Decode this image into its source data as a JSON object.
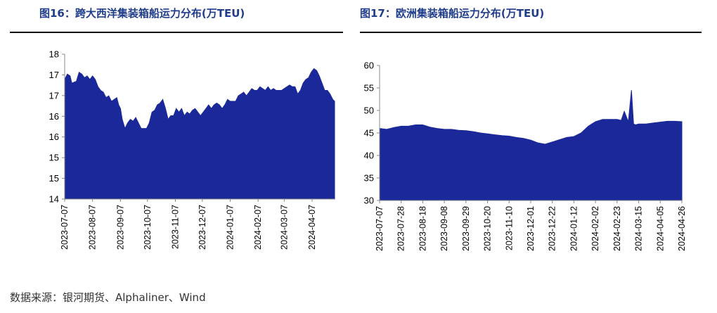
{
  "titles": {
    "left": "图16：跨大西洋集装箱船运力分布(万TEU)",
    "right": "图17：欧洲集装箱船运力分布(万TEU)"
  },
  "source": "数据来源：银河期货、Alphaliner、Wind",
  "colors": {
    "fill": "#1a2899",
    "title": "#1f3d8a",
    "axis": "#888888"
  },
  "chart_data": [
    {
      "type": "area",
      "title": "图16：跨大西洋集装箱船运力分布(万TEU)",
      "ylim": [
        14,
        18
      ],
      "y_tick_labels": [
        "14",
        "15",
        "15",
        "16",
        "16",
        "17",
        "17",
        "18"
      ],
      "x_tick_labels": [
        "2023-07-07",
        "2023-08-07",
        "2023-09-07",
        "2023-10-07",
        "2023-11-07",
        "2023-12-07",
        "2024-01-07",
        "2024-02-07",
        "2024-03-07",
        "2024-04-07"
      ],
      "grid": false,
      "series": [
        {
          "x": [
            "2023-07-07",
            "2023-07-10",
            "2023-07-13",
            "2023-07-15",
            "2023-07-20",
            "2023-07-23",
            "2023-07-26",
            "2023-07-29",
            "2023-08-01",
            "2023-08-04",
            "2023-08-07",
            "2023-08-10",
            "2023-08-13",
            "2023-08-16",
            "2023-08-19",
            "2023-08-22",
            "2023-08-25",
            "2023-08-28",
            "2023-08-31",
            "2023-09-03",
            "2023-09-05",
            "2023-09-07",
            "2023-09-09",
            "2023-09-12",
            "2023-09-15",
            "2023-09-18",
            "2023-09-21",
            "2023-09-24",
            "2023-09-27",
            "2023-09-30",
            "2023-10-03",
            "2023-10-06",
            "2023-10-09",
            "2023-10-12",
            "2023-10-15",
            "2023-10-18",
            "2023-10-21",
            "2023-10-24",
            "2023-10-27",
            "2023-10-30",
            "2023-11-02",
            "2023-11-05",
            "2023-11-08",
            "2023-11-11",
            "2023-11-14",
            "2023-11-17",
            "2023-11-20",
            "2023-11-23",
            "2023-11-26",
            "2023-11-29",
            "2023-12-02",
            "2023-12-05",
            "2023-12-08",
            "2023-12-11",
            "2023-12-14",
            "2023-12-17",
            "2023-12-20",
            "2023-12-23",
            "2023-12-26",
            "2023-12-29",
            "2024-01-01",
            "2024-01-04",
            "2024-01-07",
            "2024-01-10",
            "2024-01-13",
            "2024-01-16",
            "2024-01-19",
            "2024-01-22",
            "2024-01-25",
            "2024-01-28",
            "2024-01-31",
            "2024-02-03",
            "2024-02-06",
            "2024-02-09",
            "2024-02-12",
            "2024-02-15",
            "2024-02-18",
            "2024-02-21",
            "2024-02-24",
            "2024-02-27",
            "2024-03-01",
            "2024-03-04",
            "2024-03-07",
            "2024-03-10",
            "2024-03-13",
            "2024-03-16",
            "2024-03-19",
            "2024-03-22",
            "2024-03-25",
            "2024-03-28",
            "2024-03-31",
            "2024-04-03",
            "2024-04-06",
            "2024-04-09",
            "2024-04-12",
            "2024-04-15",
            "2024-04-18",
            "2024-04-21",
            "2024-04-24",
            "2024-04-27",
            "2024-04-30",
            "2024-05-02"
          ],
          "values": [
            17.3,
            17.45,
            17.4,
            17.2,
            17.25,
            17.5,
            17.45,
            17.35,
            17.4,
            17.3,
            17.4,
            17.3,
            17.1,
            17.0,
            16.95,
            16.8,
            16.85,
            16.7,
            16.75,
            16.8,
            16.6,
            16.5,
            16.2,
            15.95,
            16.1,
            16.2,
            16.15,
            16.25,
            16.1,
            15.95,
            15.95,
            15.95,
            16.1,
            16.4,
            16.45,
            16.6,
            16.65,
            16.75,
            16.5,
            16.2,
            16.3,
            16.3,
            16.5,
            16.4,
            16.5,
            16.3,
            16.4,
            16.35,
            16.45,
            16.5,
            16.4,
            16.3,
            16.4,
            16.5,
            16.6,
            16.5,
            16.6,
            16.65,
            16.6,
            16.5,
            16.6,
            16.75,
            16.7,
            16.7,
            16.7,
            16.85,
            16.9,
            16.95,
            16.85,
            16.95,
            17.05,
            17.0,
            17.0,
            17.1,
            17.05,
            17.0,
            17.1,
            17.0,
            17.05,
            17.0,
            17.0,
            17.0,
            17.05,
            17.1,
            17.15,
            17.1,
            17.1,
            16.9,
            17.0,
            17.2,
            17.3,
            17.35,
            17.5,
            17.6,
            17.55,
            17.4,
            17.2,
            17.0,
            17.0,
            16.9,
            16.75,
            16.7
          ]
        }
      ]
    },
    {
      "type": "area",
      "title": "图17：欧洲集装箱船运力分布(万TEU)",
      "ylim": [
        30,
        60
      ],
      "y_ticks": [
        30,
        35,
        40,
        45,
        50,
        55,
        60
      ],
      "x_tick_labels": [
        "2023-07-07",
        "2023-07-28",
        "2023-08-18",
        "2023-09-08",
        "2023-09-29",
        "2023-10-20",
        "2023-11-10",
        "2023-12-01",
        "2023-12-22",
        "2024-01-12",
        "2024-02-02",
        "2024-02-23",
        "2024-03-15",
        "2024-04-05",
        "2024-04-26"
      ],
      "grid": false,
      "series": [
        {
          "x": [
            "2023-07-07",
            "2023-07-14",
            "2023-07-21",
            "2023-07-28",
            "2023-08-04",
            "2023-08-11",
            "2023-08-18",
            "2023-08-25",
            "2023-09-01",
            "2023-09-08",
            "2023-09-15",
            "2023-09-22",
            "2023-09-29",
            "2023-10-06",
            "2023-10-13",
            "2023-10-20",
            "2023-10-27",
            "2023-11-03",
            "2023-11-10",
            "2023-11-17",
            "2023-11-24",
            "2023-12-01",
            "2023-12-08",
            "2023-12-15",
            "2023-12-22",
            "2023-12-29",
            "2024-01-05",
            "2024-01-12",
            "2024-01-19",
            "2024-01-26",
            "2024-02-02",
            "2024-02-09",
            "2024-02-16",
            "2024-02-23",
            "2024-02-27",
            "2024-03-01",
            "2024-03-05",
            "2024-03-08",
            "2024-03-10",
            "2024-03-12",
            "2024-03-15",
            "2024-03-22",
            "2024-03-29",
            "2024-04-05",
            "2024-04-12",
            "2024-04-19",
            "2024-04-26"
          ],
          "values": [
            46.0,
            45.8,
            46.2,
            46.5,
            46.5,
            46.8,
            46.8,
            46.3,
            46.0,
            45.8,
            45.8,
            45.6,
            45.5,
            45.3,
            45.0,
            44.8,
            44.6,
            44.4,
            44.3,
            44.0,
            43.8,
            43.4,
            42.8,
            42.5,
            43.0,
            43.5,
            44.0,
            44.2,
            45.0,
            46.5,
            47.5,
            48.0,
            48.0,
            48.0,
            47.8,
            49.8,
            47.5,
            54.5,
            47.0,
            46.8,
            47.0,
            47.0,
            47.2,
            47.4,
            47.6,
            47.6,
            47.5
          ]
        }
      ]
    }
  ]
}
